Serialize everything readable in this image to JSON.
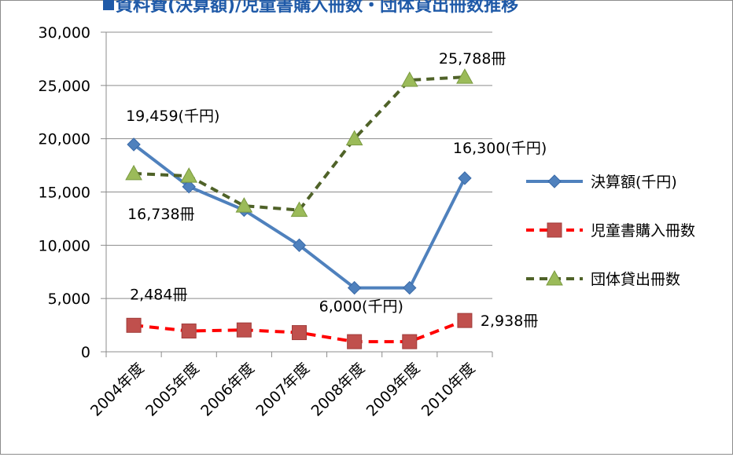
{
  "chart_data": {
    "type": "line",
    "title": "資料費(決算額)/児童書購入冊数・団体貸出冊数推移",
    "categories": [
      "2004年度",
      "2005年度",
      "2006年度",
      "2007年度",
      "2008年度",
      "2009年度",
      "2010年度"
    ],
    "ylim": [
      0,
      30000
    ],
    "yticks": [
      0,
      5000,
      10000,
      15000,
      20000,
      25000,
      30000
    ],
    "ytick_labels": [
      "0",
      "5,000",
      "10,000",
      "15,000",
      "20,000",
      "25,000",
      "30,000"
    ],
    "grid": "horizontal",
    "legend": "right",
    "series": [
      {
        "name": "決算額(千円)",
        "values": [
          19459,
          15500,
          13300,
          10000,
          6000,
          6000,
          16300
        ],
        "color": "#4f81bd",
        "marker": "diamond",
        "dash": "solid"
      },
      {
        "name": "児童書購入冊数",
        "values": [
          2484,
          1950,
          2050,
          1800,
          950,
          950,
          2938
        ],
        "color": "#ff0000",
        "marker": "square",
        "dash": "dash"
      },
      {
        "name": "団体貸出冊数",
        "values": [
          16738,
          16500,
          13700,
          13300,
          20000,
          25500,
          25788
        ],
        "color": "#4f6228",
        "marker": "triangle",
        "dash": "dash"
      }
    ],
    "annotations": [
      {
        "text": "19,459(千円)",
        "series": 0,
        "index": 0
      },
      {
        "text": "16,738冊",
        "series": 2,
        "index": 0
      },
      {
        "text": "6,000(千円)",
        "series": 0,
        "index": 4
      },
      {
        "text": "16,300(千円)",
        "series": 0,
        "index": 6
      },
      {
        "text": "25,788冊",
        "series": 2,
        "index": 6
      },
      {
        "text": "2,484冊",
        "series": 1,
        "index": 0
      },
      {
        "text": "2,938冊",
        "series": 1,
        "index": 6
      }
    ]
  },
  "legend_icons": [
    "diamond-marker",
    "square-marker",
    "triangle-marker"
  ]
}
